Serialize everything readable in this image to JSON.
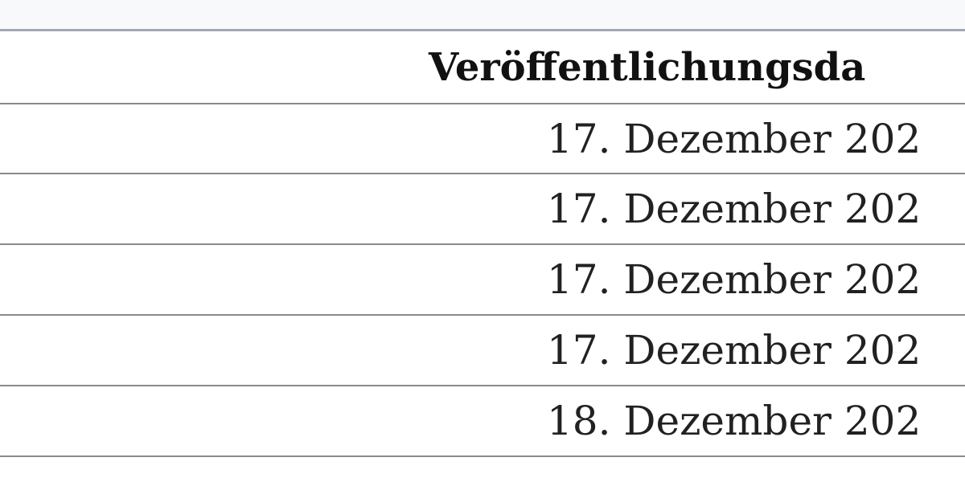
{
  "table": {
    "header": [
      "Veröffentlichungsda"
    ],
    "rows": [
      [
        "17. Dezember 202"
      ],
      [
        "17. Dezember 202"
      ],
      [
        "17. Dezember 202"
      ],
      [
        "17. Dezember 202"
      ],
      [
        "18. Dezember 202"
      ]
    ]
  }
}
